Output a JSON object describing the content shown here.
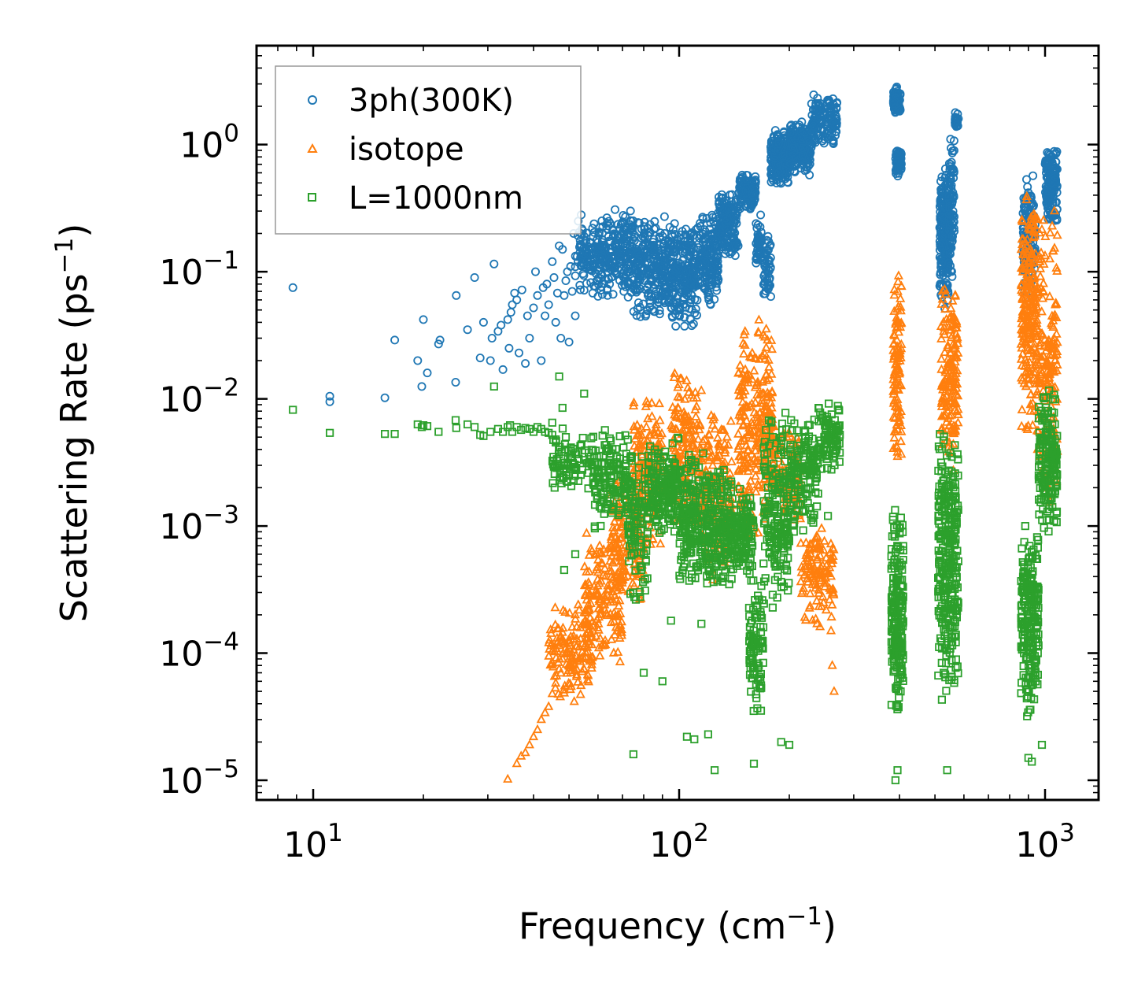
{
  "chart_data": {
    "type": "scatter",
    "xscale": "log",
    "yscale": "log",
    "xlim": [
      7,
      1400
    ],
    "ylim": [
      7e-06,
      6
    ],
    "xlabel": "Frequency (cm",
    "xlabel_sup": "−1",
    "xlabel_tail": ")",
    "ylabel": "Scattering Rate (ps",
    "ylabel_sup": "−1",
    "ylabel_tail": ")",
    "x_ticks": [
      {
        "value": 10,
        "base": "10",
        "exp": "1"
      },
      {
        "value": 100,
        "base": "10",
        "exp": "2"
      },
      {
        "value": 1000,
        "base": "10",
        "exp": "3"
      }
    ],
    "y_ticks": [
      {
        "value": 1,
        "base": "10",
        "exp": "0"
      },
      {
        "value": 0.1,
        "base": "10",
        "exp": "−1"
      },
      {
        "value": 0.01,
        "base": "10",
        "exp": "−2"
      },
      {
        "value": 0.001,
        "base": "10",
        "exp": "−3"
      },
      {
        "value": 0.0001,
        "base": "10",
        "exp": "−4"
      },
      {
        "value": 1e-05,
        "base": "10",
        "exp": "−5"
      }
    ],
    "legend_position": "upper-left",
    "series": [
      {
        "name": "3ph(300K)",
        "marker": "circle",
        "color": "#1f77b4",
        "points": [
          [
            8.8,
            0.075
          ],
          [
            11.1,
            0.0105
          ],
          [
            11.1,
            0.0095
          ],
          [
            15.7,
            0.0102
          ],
          [
            16.7,
            0.029
          ],
          [
            19.3,
            0.02
          ],
          [
            19.8,
            0.0125
          ],
          [
            20,
            0.042
          ],
          [
            20.5,
            0.016
          ],
          [
            22,
            0.027
          ],
          [
            22.2,
            0.029
          ],
          [
            24.5,
            0.0135
          ],
          [
            24.6,
            0.065
          ],
          [
            26.4,
            0.035
          ],
          [
            27.6,
            0.09
          ],
          [
            28.6,
            0.021
          ],
          [
            29.2,
            0.04
          ],
          [
            30.5,
            0.02
          ],
          [
            31.2,
            0.115
          ],
          [
            30.8,
            0.03
          ],
          [
            32,
            0.034
          ],
          [
            32.6,
            0.038
          ],
          [
            33,
            0.017
          ],
          [
            34,
            0.042
          ],
          [
            34.3,
            0.025
          ],
          [
            34.7,
            0.048
          ],
          [
            35,
            0.055
          ],
          [
            35.5,
            0.068
          ],
          [
            36,
            0.06
          ],
          [
            36.5,
            0.023
          ],
          [
            37.2,
            0.072
          ],
          [
            38,
            0.019
          ],
          [
            38.5,
            0.045
          ],
          [
            39,
            0.03
          ],
          [
            40,
            0.052
          ],
          [
            40.5,
            0.1
          ],
          [
            41,
            0.065
          ],
          [
            42,
            0.02
          ],
          [
            42.5,
            0.075
          ],
          [
            43,
            0.045
          ],
          [
            43.5,
            0.08
          ],
          [
            44,
            0.055
          ],
          [
            45,
            0.12
          ],
          [
            45.5,
            0.09
          ],
          [
            46,
            0.04
          ],
          [
            46.5,
            0.068
          ],
          [
            47,
            0.16
          ],
          [
            47.5,
            0.03
          ],
          [
            48,
            0.15
          ],
          [
            48.5,
            0.065
          ],
          [
            49,
            0.085
          ],
          [
            49.5,
            0.1
          ],
          [
            50,
            0.028
          ],
          [
            50.5,
            0.11
          ],
          [
            51,
            0.07
          ],
          [
            51.5,
            0.2
          ],
          [
            52,
            0.045
          ],
          [
            53,
            0.25
          ],
          [
            54,
            0.28
          ],
          [
            55,
            0.19
          ],
          [
            56,
            0.14
          ],
          [
            57,
            0.17
          ],
          [
            58,
            0.22
          ]
        ],
        "clusters": [
          {
            "x": [
              52,
              60
            ],
            "y": [
              0.06,
              0.28
            ],
            "n": 90
          },
          {
            "x": [
              60,
              75
            ],
            "y": [
              0.06,
              0.32
            ],
            "n": 220
          },
          {
            "x": [
              75,
              95
            ],
            "y": [
              0.04,
              0.3
            ],
            "n": 260
          },
          {
            "x": [
              95,
              112
            ],
            "y": [
              0.035,
              0.25
            ],
            "n": 220
          },
          {
            "x": [
              112,
              128
            ],
            "y": [
              0.05,
              0.3
            ],
            "n": 160
          },
          {
            "x": [
              128,
              145
            ],
            "y": [
              0.12,
              0.45
            ],
            "n": 160
          },
          {
            "x": [
              145,
              162
            ],
            "y": [
              0.3,
              0.6
            ],
            "n": 120
          },
          {
            "x": [
              162,
              168
            ],
            "y": [
              0.1,
              0.3
            ],
            "n": 40
          },
          {
            "x": [
              170,
              178
            ],
            "y": [
              0.06,
              0.2
            ],
            "n": 50
          },
          {
            "x": [
              178,
              200
            ],
            "y": [
              0.45,
              1.4
            ],
            "n": 180
          },
          {
            "x": [
              200,
              230
            ],
            "y": [
              0.55,
              1.6
            ],
            "n": 180
          },
          {
            "x": [
              230,
              270
            ],
            "y": [
              0.9,
              2.6
            ],
            "n": 140
          },
          {
            "x": [
              385,
              402
            ],
            "y": [
              1.7,
              3.0
            ],
            "n": 80
          },
          {
            "x": [
              390,
              405
            ],
            "y": [
              0.55,
              0.9
            ],
            "n": 60
          },
          {
            "x": [
              515,
              545
            ],
            "y": [
              0.05,
              0.7
            ],
            "n": 200
          },
          {
            "x": [
              545,
              565
            ],
            "y": [
              0.08,
              1.4
            ],
            "n": 90
          },
          {
            "x": [
              565,
              580
            ],
            "y": [
              1.3,
              2.0
            ],
            "n": 20
          },
          {
            "x": [
              870,
              940
            ],
            "y": [
              0.06,
              0.6
            ],
            "n": 150
          },
          {
            "x": [
              1000,
              1080
            ],
            "y": [
              0.2,
              1.0
            ],
            "n": 160
          }
        ]
      },
      {
        "name": "isotope",
        "marker": "triangle",
        "color": "#ff7f0e",
        "points": [
          [
            34,
            1.02e-05
          ],
          [
            36,
            1.35e-05
          ],
          [
            37,
            1.55e-05
          ],
          [
            38,
            1.65e-05
          ],
          [
            39,
            1.9e-05
          ],
          [
            40,
            2.2e-05
          ],
          [
            41,
            2.5e-05
          ],
          [
            42,
            3e-05
          ],
          [
            43,
            3.4e-05
          ],
          [
            44,
            3.8e-05
          ],
          [
            45,
            4.8e-05
          ],
          [
            46,
            5.8e-05
          ],
          [
            47,
            7.5e-05
          ],
          [
            48,
            9e-05
          ],
          [
            49,
            0.0001
          ],
          [
            50,
            0.00012
          ],
          [
            51,
            0.00016
          ],
          [
            52,
            0.0002
          ],
          [
            53,
            0.00024
          ],
          [
            260,
            0.00015
          ],
          [
            262,
            8e-05
          ],
          [
            265,
            5e-05
          ]
        ],
        "clusters": [
          {
            "x": [
              44,
              58
            ],
            "y": [
              4e-05,
              0.00025
            ],
            "n": 140
          },
          {
            "x": [
              55,
              70
            ],
            "y": [
              8e-05,
              0.0009
            ],
            "n": 160
          },
          {
            "x": [
              65,
              80
            ],
            "y": [
              0.0002,
              0.0025
            ],
            "n": 140
          },
          {
            "x": [
              75,
              90
            ],
            "y": [
              0.0006,
              0.012
            ],
            "n": 160
          },
          {
            "x": [
              95,
              115
            ],
            "y": [
              0.0008,
              0.02
            ],
            "n": 170
          },
          {
            "x": [
              115,
              140
            ],
            "y": [
              0.0003,
              0.009
            ],
            "n": 170
          },
          {
            "x": [
              145,
              165
            ],
            "y": [
              0.0005,
              0.05
            ],
            "n": 150
          },
          {
            "x": [
              165,
              180
            ],
            "y": [
              0.001,
              0.055
            ],
            "n": 120
          },
          {
            "x": [
              180,
              215
            ],
            "y": [
              0.001,
              0.007
            ],
            "n": 110
          },
          {
            "x": [
              215,
              265
            ],
            "y": [
              0.00015,
              0.0012
            ],
            "n": 120
          },
          {
            "x": [
              385,
              405
            ],
            "y": [
              0.003,
              0.1
            ],
            "n": 110
          },
          {
            "x": [
              520,
              580
            ],
            "y": [
              0.0025,
              0.09
            ],
            "n": 160
          },
          {
            "x": [
              860,
              950
            ],
            "y": [
              0.005,
              0.5
            ],
            "n": 220
          },
          {
            "x": [
              950,
              1080
            ],
            "y": [
              0.0012,
              0.35
            ],
            "n": 180
          }
        ]
      },
      {
        "name": "L=1000nm",
        "marker": "square",
        "color": "#2ca02c",
        "points": [
          [
            8.8,
            0.0082
          ],
          [
            11.1,
            0.0054
          ],
          [
            15.7,
            0.0053
          ],
          [
            16.7,
            0.0053
          ],
          [
            19.3,
            0.0063
          ],
          [
            19.8,
            0.006
          ],
          [
            20,
            0.0062
          ],
          [
            20.5,
            0.0061
          ],
          [
            22,
            0.0055
          ],
          [
            24.5,
            0.0068
          ],
          [
            24.6,
            0.0059
          ],
          [
            26.4,
            0.0063
          ],
          [
            27.6,
            0.006
          ],
          [
            28.6,
            0.0052
          ],
          [
            29.2,
            0.0051
          ],
          [
            30.5,
            0.0055
          ],
          [
            31.2,
            0.0125
          ],
          [
            32,
            0.0058
          ],
          [
            33,
            0.0055
          ],
          [
            34,
            0.006
          ],
          [
            34.5,
            0.0062
          ],
          [
            35,
            0.0055
          ],
          [
            36,
            0.006
          ],
          [
            37,
            0.0057
          ],
          [
            38,
            0.0059
          ],
          [
            39,
            0.0058
          ],
          [
            40,
            0.0055
          ],
          [
            41,
            0.006
          ],
          [
            42,
            0.0058
          ],
          [
            43,
            0.0055
          ],
          [
            44,
            0.0054
          ],
          [
            45,
            0.0052
          ],
          [
            45,
            0.0065
          ],
          [
            46,
            0.0048
          ],
          [
            47,
            0.015
          ],
          [
            48,
            0.0085
          ],
          [
            48.5,
            0.00045
          ],
          [
            50,
            0.0025
          ],
          [
            51,
            0.0035
          ],
          [
            52,
            0.0006
          ],
          [
            55,
            0.011
          ],
          [
            75,
            1.6e-05
          ],
          [
            80,
            7e-05
          ],
          [
            90,
            6e-05
          ],
          [
            95,
            0.00018
          ],
          [
            105,
            2.2e-05
          ],
          [
            110,
            2.1e-05
          ],
          [
            115,
            0.00017
          ],
          [
            120,
            2.3e-05
          ],
          [
            125,
            1.2e-05
          ],
          [
            160,
            1.35e-05
          ],
          [
            190,
            2e-05
          ],
          [
            200,
            1.9e-05
          ],
          [
            255,
            0.0012
          ],
          [
            390,
            1e-05
          ],
          [
            395,
            1.2e-05
          ],
          [
            540,
            1.2e-05
          ],
          [
            900,
            1.5e-05
          ],
          [
            920,
            1.4e-05
          ],
          [
            980,
            1.9e-05
          ]
        ],
        "clusters": [
          {
            "x": [
              45,
              60
            ],
            "y": [
              0.0018,
              0.006
            ],
            "n": 90
          },
          {
            "x": [
              58,
              75
            ],
            "y": [
              0.0008,
              0.0065
            ],
            "n": 150
          },
          {
            "x": [
              72,
              82
            ],
            "y": [
              0.0002,
              0.005
            ],
            "n": 100
          },
          {
            "x": [
              82,
              100
            ],
            "y": [
              0.0008,
              0.005
            ],
            "n": 180
          },
          {
            "x": [
              100,
              120
            ],
            "y": [
              0.0003,
              0.0045
            ],
            "n": 200
          },
          {
            "x": [
              120,
              140
            ],
            "y": [
              0.0003,
              0.003
            ],
            "n": 170
          },
          {
            "x": [
              140,
              160
            ],
            "y": [
              0.0004,
              0.002
            ],
            "n": 130
          },
          {
            "x": [
              155,
              170
            ],
            "y": [
              3e-05,
              0.0005
            ],
            "n": 90
          },
          {
            "x": [
              170,
              200
            ],
            "y": [
              0.0002,
              0.008
            ],
            "n": 200
          },
          {
            "x": [
              200,
              240
            ],
            "y": [
              0.0008,
              0.008
            ],
            "n": 150
          },
          {
            "x": [
              240,
              275
            ],
            "y": [
              0.0025,
              0.01
            ],
            "n": 90
          },
          {
            "x": [
              380,
              410
            ],
            "y": [
              3e-05,
              0.0015
            ],
            "n": 200
          },
          {
            "x": [
              510,
              580
            ],
            "y": [
              4e-05,
              0.007
            ],
            "n": 300
          },
          {
            "x": [
              860,
              960
            ],
            "y": [
              3e-05,
              0.0012
            ],
            "n": 230
          },
          {
            "x": [
              960,
              1080
            ],
            "y": [
              0.0008,
              0.013
            ],
            "n": 180
          }
        ]
      }
    ]
  }
}
